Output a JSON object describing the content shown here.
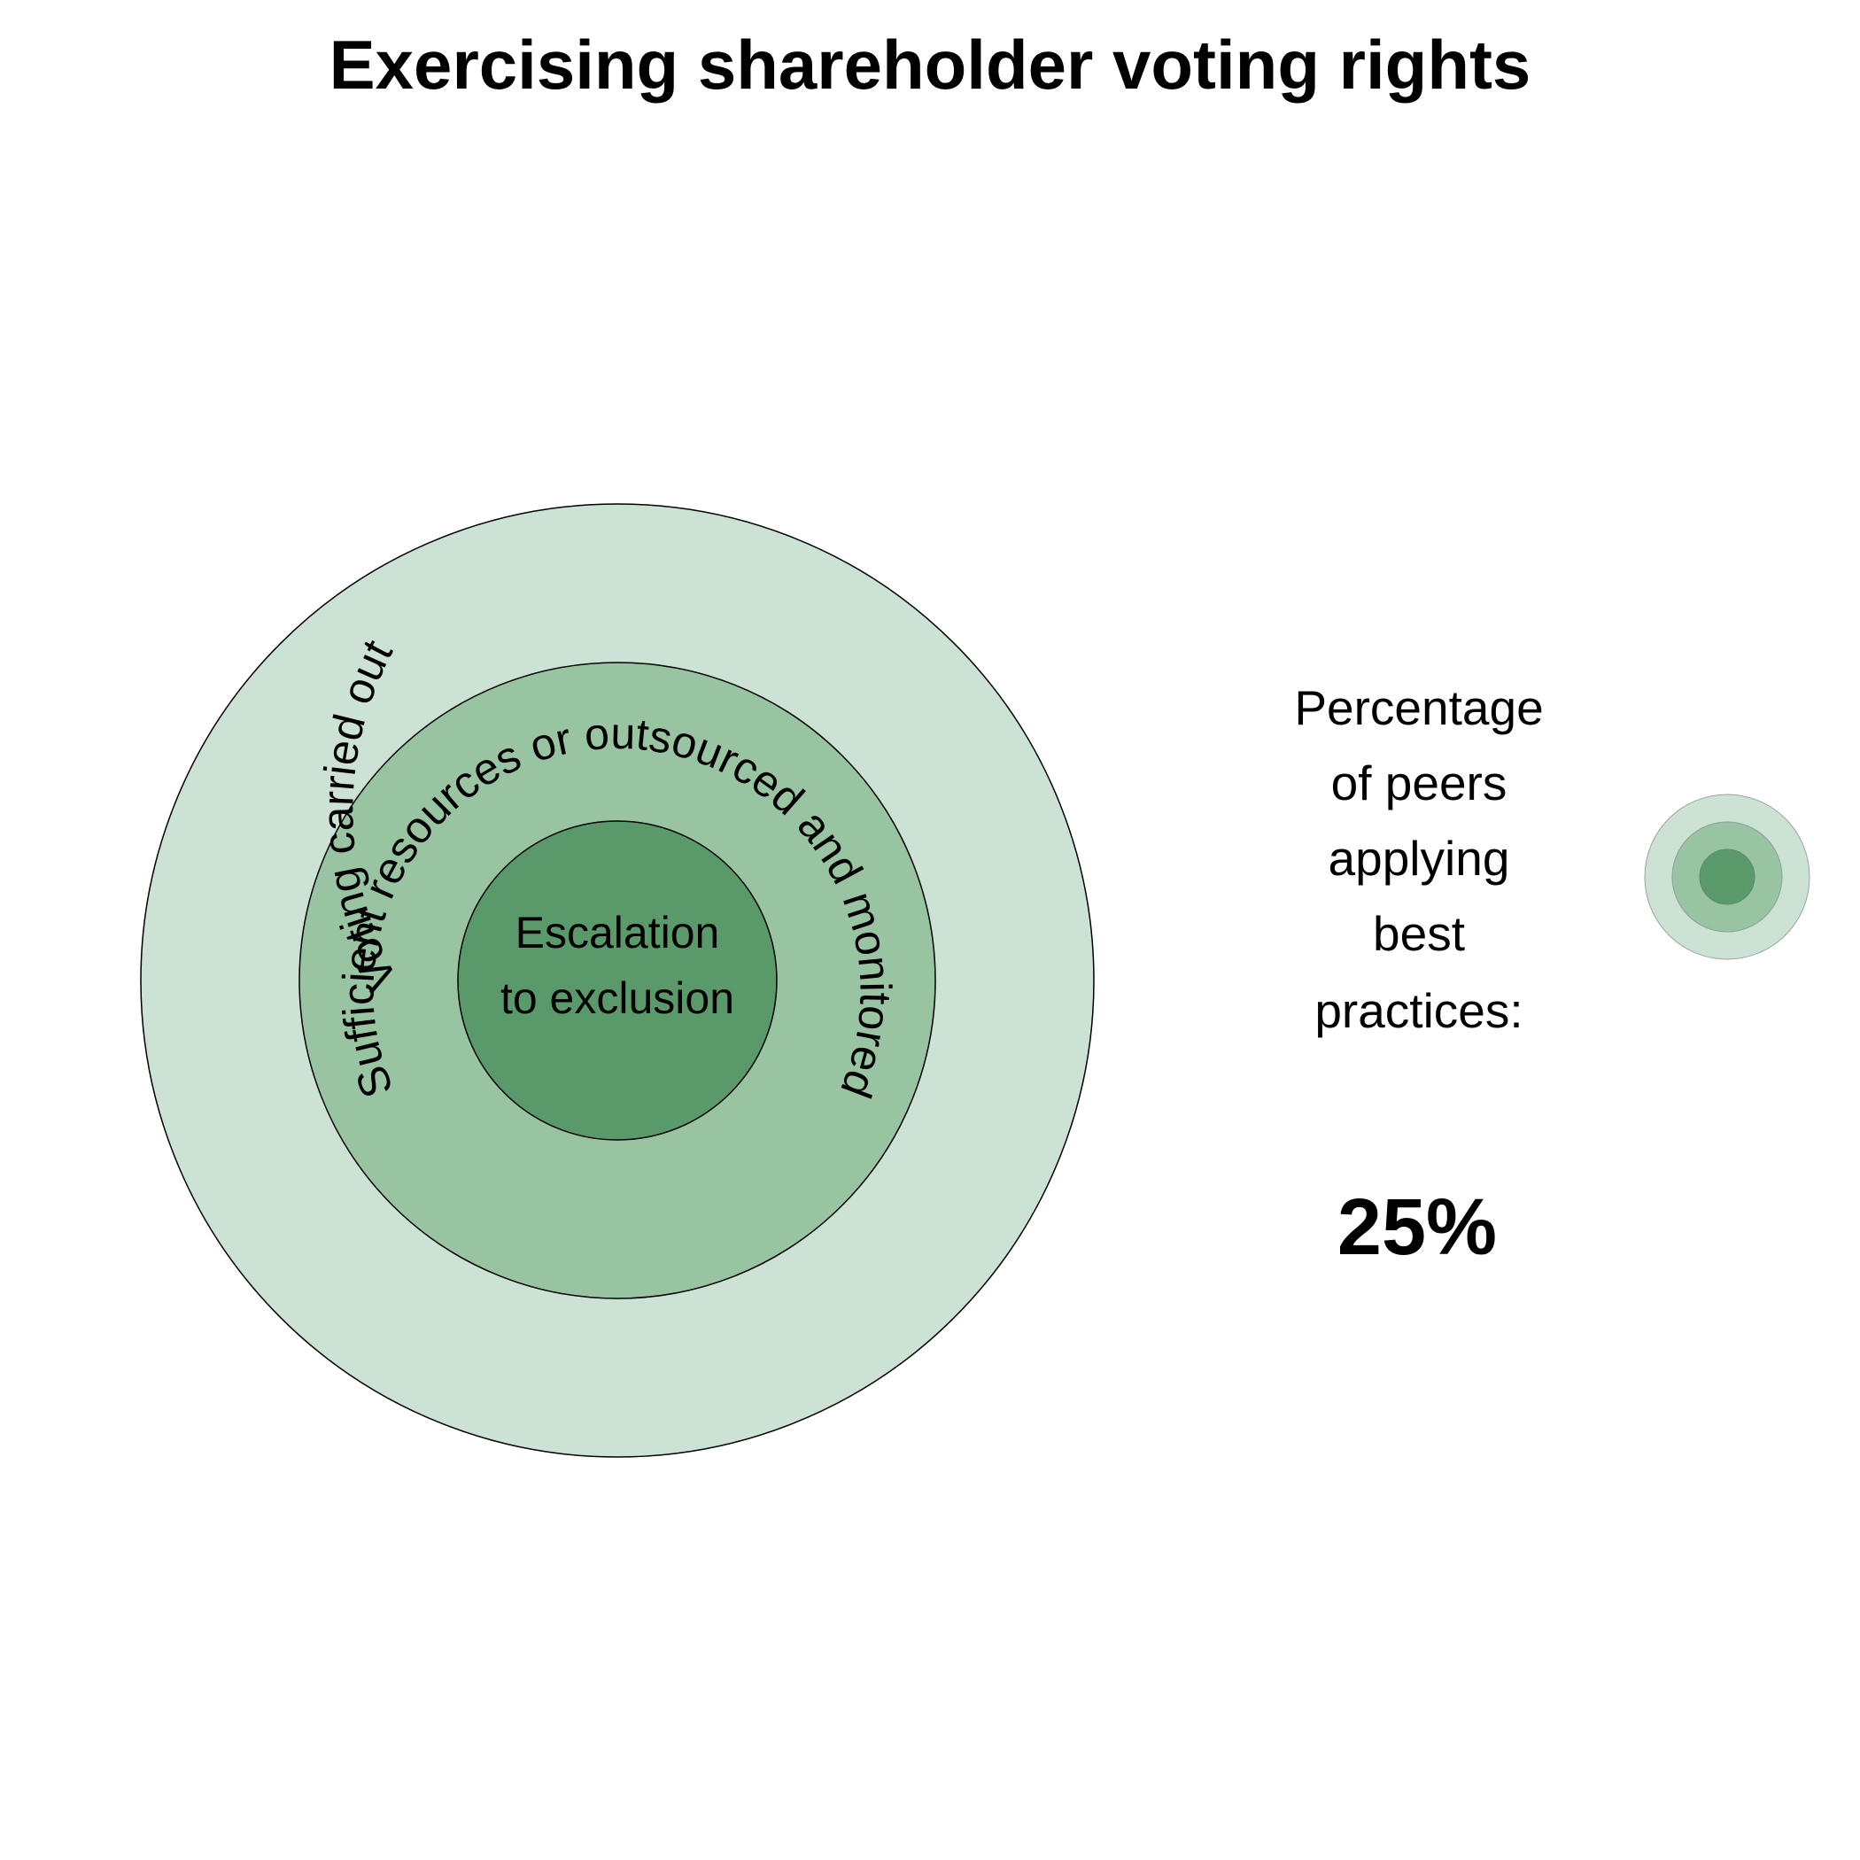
{
  "title": "Exercising shareholder voting rights",
  "rings": {
    "outer": {
      "label": "Voting carried out",
      "color": "#cbe2d4"
    },
    "middle": {
      "label": "Sufficient resources or outsourced and monitored",
      "color": "#99c4a2"
    },
    "inner": {
      "label_line1": "Escalation",
      "label_line2": "to exclusion",
      "color": "#5a9a6a"
    }
  },
  "side_panel": {
    "lines": [
      "Percentage",
      "of peers",
      "applying",
      "best",
      "practices:"
    ],
    "value": "25%"
  },
  "indicator": {
    "icon": "concentric-circles-icon",
    "levels_filled": 3,
    "levels_total": 3
  }
}
